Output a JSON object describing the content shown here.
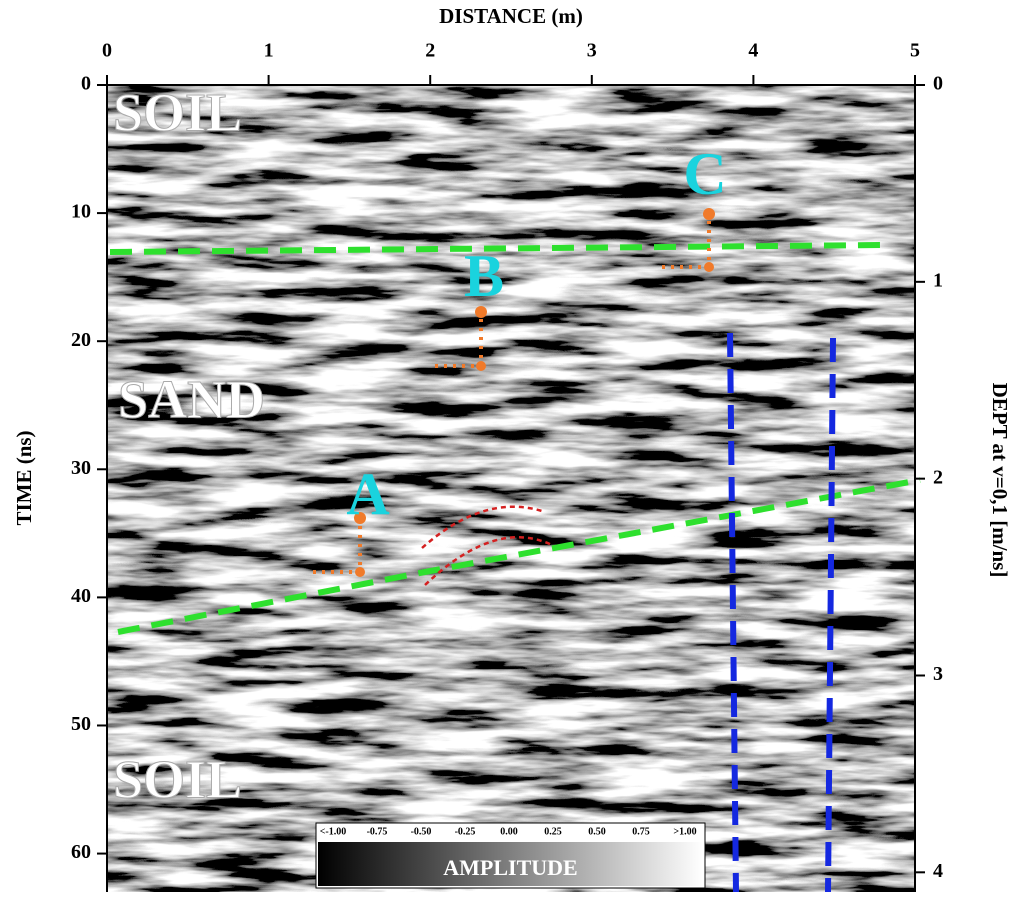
{
  "chart_data": {
    "type": "radargram",
    "x_label": "DISTANCE (m)",
    "y_label": "TIME (ns)",
    "y2_label": "DEPT at v=0,1 [m/ns]",
    "xlim": [
      0,
      5
    ],
    "xticks": [
      0,
      1,
      2,
      3,
      4,
      5
    ],
    "ylim": [
      0,
      63
    ],
    "yticks": [
      0,
      10,
      20,
      30,
      40,
      50,
      60
    ],
    "y_inverted": true,
    "y2lim": [
      0,
      4.1
    ],
    "y2ticks": [
      0,
      1,
      2,
      3,
      4
    ],
    "layers": [
      "SOIL",
      "SAND",
      "SOIL"
    ],
    "targets": [
      "A",
      "B",
      "C"
    ],
    "target_color": "#1ad3de",
    "colorbar": {
      "label": "AMPLITUDE",
      "lim": [
        -1,
        1
      ],
      "ticks": [
        {
          "value": -1,
          "label": "<-1.00"
        },
        -0.75,
        {
          "value": -0.5,
          "label": "-0.50"
        },
        -0.25,
        {
          "value": 0,
          "label": "0.00"
        },
        0.25,
        {
          "value": 0.5,
          "label": "0.50"
        },
        0.75,
        {
          "value": 1,
          "label": ">1.00"
        }
      ]
    }
  }
}
